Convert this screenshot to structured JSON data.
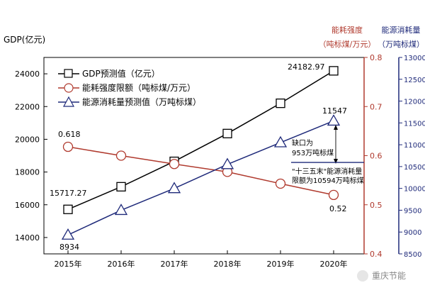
{
  "chart_data": {
    "type": "line",
    "categories": [
      "2015年",
      "2016年",
      "2017年",
      "2018年",
      "2019年",
      "2020年"
    ],
    "series": [
      {
        "name": "GDP预测值（亿元）",
        "axis": "left",
        "color": "#000000",
        "marker": "square",
        "values": [
          15717.27,
          17100,
          18650,
          20350,
          22200,
          24182.97
        ]
      },
      {
        "name": "能耗强度限额（吨标煤/万元）",
        "axis": "right1",
        "color": "#b03a2e",
        "marker": "circle",
        "values": [
          0.618,
          0.6,
          0.583,
          0.567,
          0.543,
          0.52
        ]
      },
      {
        "name": "能源消耗量预测值（万吨标煤）",
        "axis": "right2",
        "color": "#1f2a7a",
        "marker": "triangle",
        "values": [
          8934,
          9500,
          10000,
          10550,
          11050,
          11547
        ]
      }
    ],
    "axes": {
      "left": {
        "label": "GDP(亿元)",
        "ylim": [
          13000,
          25000
        ],
        "ticks": [
          14000,
          16000,
          18000,
          20000,
          22000,
          24000
        ]
      },
      "right1": {
        "label_line1": "能耗强度",
        "label_line2": "（吨标煤/万元）",
        "ylim": [
          0.4,
          0.8
        ],
        "ticks": [
          0.4,
          0.5,
          0.6,
          0.7,
          0.8
        ],
        "color": "#b03a2e"
      },
      "right2": {
        "label_line1": "能源消耗量",
        "label_line2": "（万吨标煤）",
        "ylim": [
          8500,
          13000
        ],
        "ticks": [
          8500,
          9000,
          9500,
          10000,
          10500,
          11000,
          11500,
          12000,
          12500,
          13000
        ],
        "color": "#1f2a7a"
      }
    },
    "data_labels": {
      "gdp_start": "15717.27",
      "gdp_end": "24182.97",
      "intensity_start": "0.618",
      "intensity_end": "0.52",
      "energy_start": "8934",
      "energy_end": "11547"
    },
    "annotations": {
      "gap_line1": "缺口为",
      "gap_line2": "953万吨标煤",
      "limit_line1": "\"十三五末\"能源消耗量",
      "limit_line2": "限额为10594万吨标煤",
      "limit_value": 10594
    },
    "legend_position": "top-left"
  },
  "watermark": {
    "text": "重庆节能"
  }
}
